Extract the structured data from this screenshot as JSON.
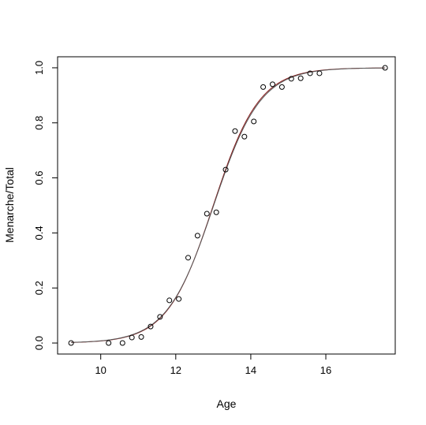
{
  "chart_data": {
    "type": "scatter",
    "title": "",
    "xlabel": "Age",
    "ylabel": "Menarche/Total",
    "xlim": [
      8.85,
      17.85
    ],
    "ylim": [
      -0.04,
      1.04
    ],
    "xticks": [
      10,
      12,
      14,
      16
    ],
    "xtick_labels": [
      "10",
      "12",
      "14",
      "16"
    ],
    "yticks": [
      0.0,
      0.2,
      0.4,
      0.6,
      0.8,
      1.0
    ],
    "ytick_labels": [
      "0.0",
      "0.2",
      "0.4",
      "0.6",
      "0.8",
      "1.0"
    ],
    "grid": false,
    "legend": "none",
    "points": {
      "x": [
        9.21,
        10.21,
        10.58,
        10.83,
        11.08,
        11.33,
        11.58,
        11.83,
        12.08,
        12.33,
        12.58,
        12.83,
        13.08,
        13.33,
        13.58,
        13.83,
        14.08,
        14.33,
        14.58,
        14.83,
        15.08,
        15.33,
        15.58,
        15.83,
        17.58
      ],
      "y": [
        0.0,
        0.0,
        0.0,
        0.02,
        0.022,
        0.06,
        0.095,
        0.155,
        0.16,
        0.31,
        0.39,
        0.47,
        0.475,
        0.63,
        0.77,
        0.75,
        0.805,
        0.93,
        0.94,
        0.93,
        0.96,
        0.962,
        0.98,
        0.98,
        1.0
      ]
    },
    "curves": [
      {
        "type": "logistic",
        "x0": 13.0,
        "k": 1.63,
        "x_range": [
          9.21,
          17.58
        ],
        "color": "#8b1a1a"
      },
      {
        "type": "logistic",
        "x0": 13.01,
        "k": 1.6,
        "x_range": [
          9.21,
          17.58
        ],
        "color": "#555555"
      }
    ],
    "colors": {
      "points": "#000000",
      "frame": "#000000"
    }
  }
}
